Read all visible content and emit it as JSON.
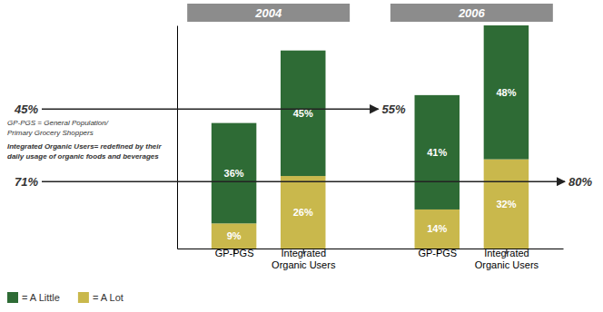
{
  "chart_data": {
    "type": "bar",
    "stacked": true,
    "data_labels": true,
    "tick_labels": "x",
    "legend": "lower left",
    "categories": [
      "GP-PGS",
      "Integrated\nOrganic Users",
      "GP-PGS",
      "Integrated\nOrganic Users"
    ],
    "series": [
      {
        "name": "= A Lot",
        "color": "#c9b84c",
        "values": [
          9,
          26,
          14,
          32
        ],
        "value_labels": [
          "9%",
          "26%",
          "14%",
          "32%"
        ]
      },
      {
        "name": "= A Little",
        "color": "#2e6b35",
        "values": [
          36,
          45,
          41,
          48
        ],
        "value_labels": [
          "36%",
          "45%",
          "41%",
          "48%"
        ]
      }
    ],
    "ylim": [
      0,
      80
    ],
    "annotations": [
      "2004",
      "2006",
      "45%",
      "55%",
      "71%",
      "80%",
      "GP-PGS = General Population/\nPrimary Grocery Shoppers",
      "Integrated Organic Users= redefined by their\ndaily usage of organic foods and beverages"
    ]
  }
}
